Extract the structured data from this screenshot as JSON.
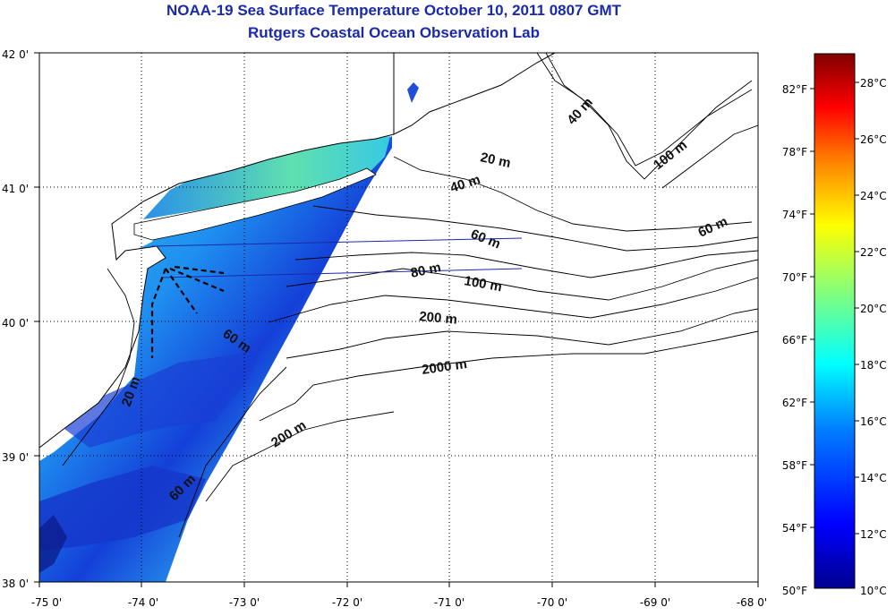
{
  "title": "NOAA-19 Sea Surface Temperature October 10, 2011 0807 GMT",
  "subtitle": "Rutgers Coastal Ocean Observation Lab",
  "map": {
    "lon_labels": [
      "-75 0'",
      "-74 0'",
      "-73 0'",
      "-72 0'",
      "-71 0'",
      "-70 0'",
      "-69 0'",
      "-68 0'"
    ],
    "lat_labels": [
      "42 0'",
      "41 0'",
      "40 0'",
      "39 0'",
      "38 0'"
    ],
    "depth_labels": [
      "20 m",
      "40 m",
      "40 m",
      "100 m",
      "60 m",
      "60 m",
      "80 m",
      "100 m",
      "200 m",
      "2000 m",
      "60 m",
      "20 m",
      "200 m",
      "60 m"
    ],
    "land_color": "#ffffff",
    "sst_range_color_low": "#0c2aa8",
    "sst_range_color_high": "#39d6dc"
  },
  "colorbar": {
    "fahrenheit_labels": [
      "50°F",
      "54°F",
      "58°F",
      "62°F",
      "66°F",
      "70°F",
      "74°F",
      "78°F",
      "82°F"
    ],
    "celsius_labels": [
      "10°C",
      "12°C",
      "14°C",
      "16°C",
      "18°C",
      "20°C",
      "22°C",
      "24°C",
      "26°C",
      "28°C"
    ],
    "colormap": [
      "#00008f",
      "#0000ff",
      "#0080ff",
      "#00ffff",
      "#80ff80",
      "#ffff00",
      "#ff8000",
      "#ff0000",
      "#800000"
    ]
  }
}
